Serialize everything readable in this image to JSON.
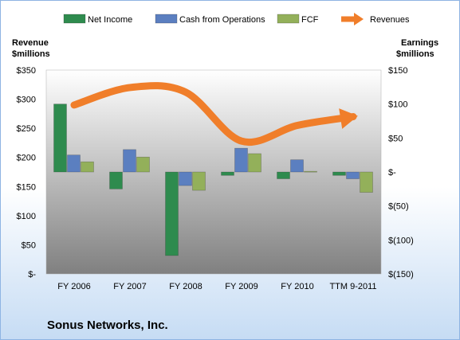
{
  "chart_data": {
    "type": "bar",
    "title": "Sonus Networks, Inc.",
    "categories": [
      "FY 2006",
      "FY 2007",
      "FY 2008",
      "FY 2009",
      "FY 2010",
      "TTM 9-2011"
    ],
    "series": [
      {
        "name": "Net Income",
        "kind": "bar",
        "axis": "right",
        "color": "#2e8b4e",
        "values": [
          100,
          -25,
          -123,
          -5,
          -10,
          -5
        ]
      },
      {
        "name": "Cash from Operations",
        "kind": "bar",
        "axis": "right",
        "color": "#5b7fc0",
        "values": [
          25,
          33,
          -20,
          35,
          18,
          -10
        ]
      },
      {
        "name": "FCF",
        "kind": "bar",
        "axis": "right",
        "color": "#93b05a",
        "values": [
          15,
          22,
          -27,
          27,
          1,
          -30
        ]
      },
      {
        "name": "Revenues",
        "kind": "line",
        "axis": "left",
        "color": "#f07e2a",
        "values": [
          290,
          320,
          312,
          228,
          255,
          270
        ]
      }
    ],
    "left_axis": {
      "label_line1": "Revenue",
      "label_line2": "$millions",
      "ylim": [
        0,
        350
      ],
      "ticks": [
        {
          "value": 350,
          "label": "$350"
        },
        {
          "value": 300,
          "label": "$300"
        },
        {
          "value": 250,
          "label": "$250"
        },
        {
          "value": 200,
          "label": "$200"
        },
        {
          "value": 150,
          "label": "$150"
        },
        {
          "value": 100,
          "label": "$100"
        },
        {
          "value": 50,
          "label": "$50"
        },
        {
          "value": 0,
          "label": "$-"
        }
      ]
    },
    "right_axis": {
      "label_line1": "Earnings",
      "label_line2": "$millions",
      "ylim": [
        -150,
        150
      ],
      "ticks": [
        {
          "value": 150,
          "label": "$150"
        },
        {
          "value": 100,
          "label": "$100"
        },
        {
          "value": 50,
          "label": "$50"
        },
        {
          "value": 0,
          "label": "$-"
        },
        {
          "value": -50,
          "label": "$(50)"
        },
        {
          "value": -100,
          "label": "$(100)"
        },
        {
          "value": -150,
          "label": "$(150)"
        }
      ]
    },
    "grid": false,
    "legend_position": "top"
  },
  "colors": {
    "plot_top": "#ffffff",
    "plot_bottom": "#7f7f7f",
    "frame_border": "#8eb4e3"
  }
}
